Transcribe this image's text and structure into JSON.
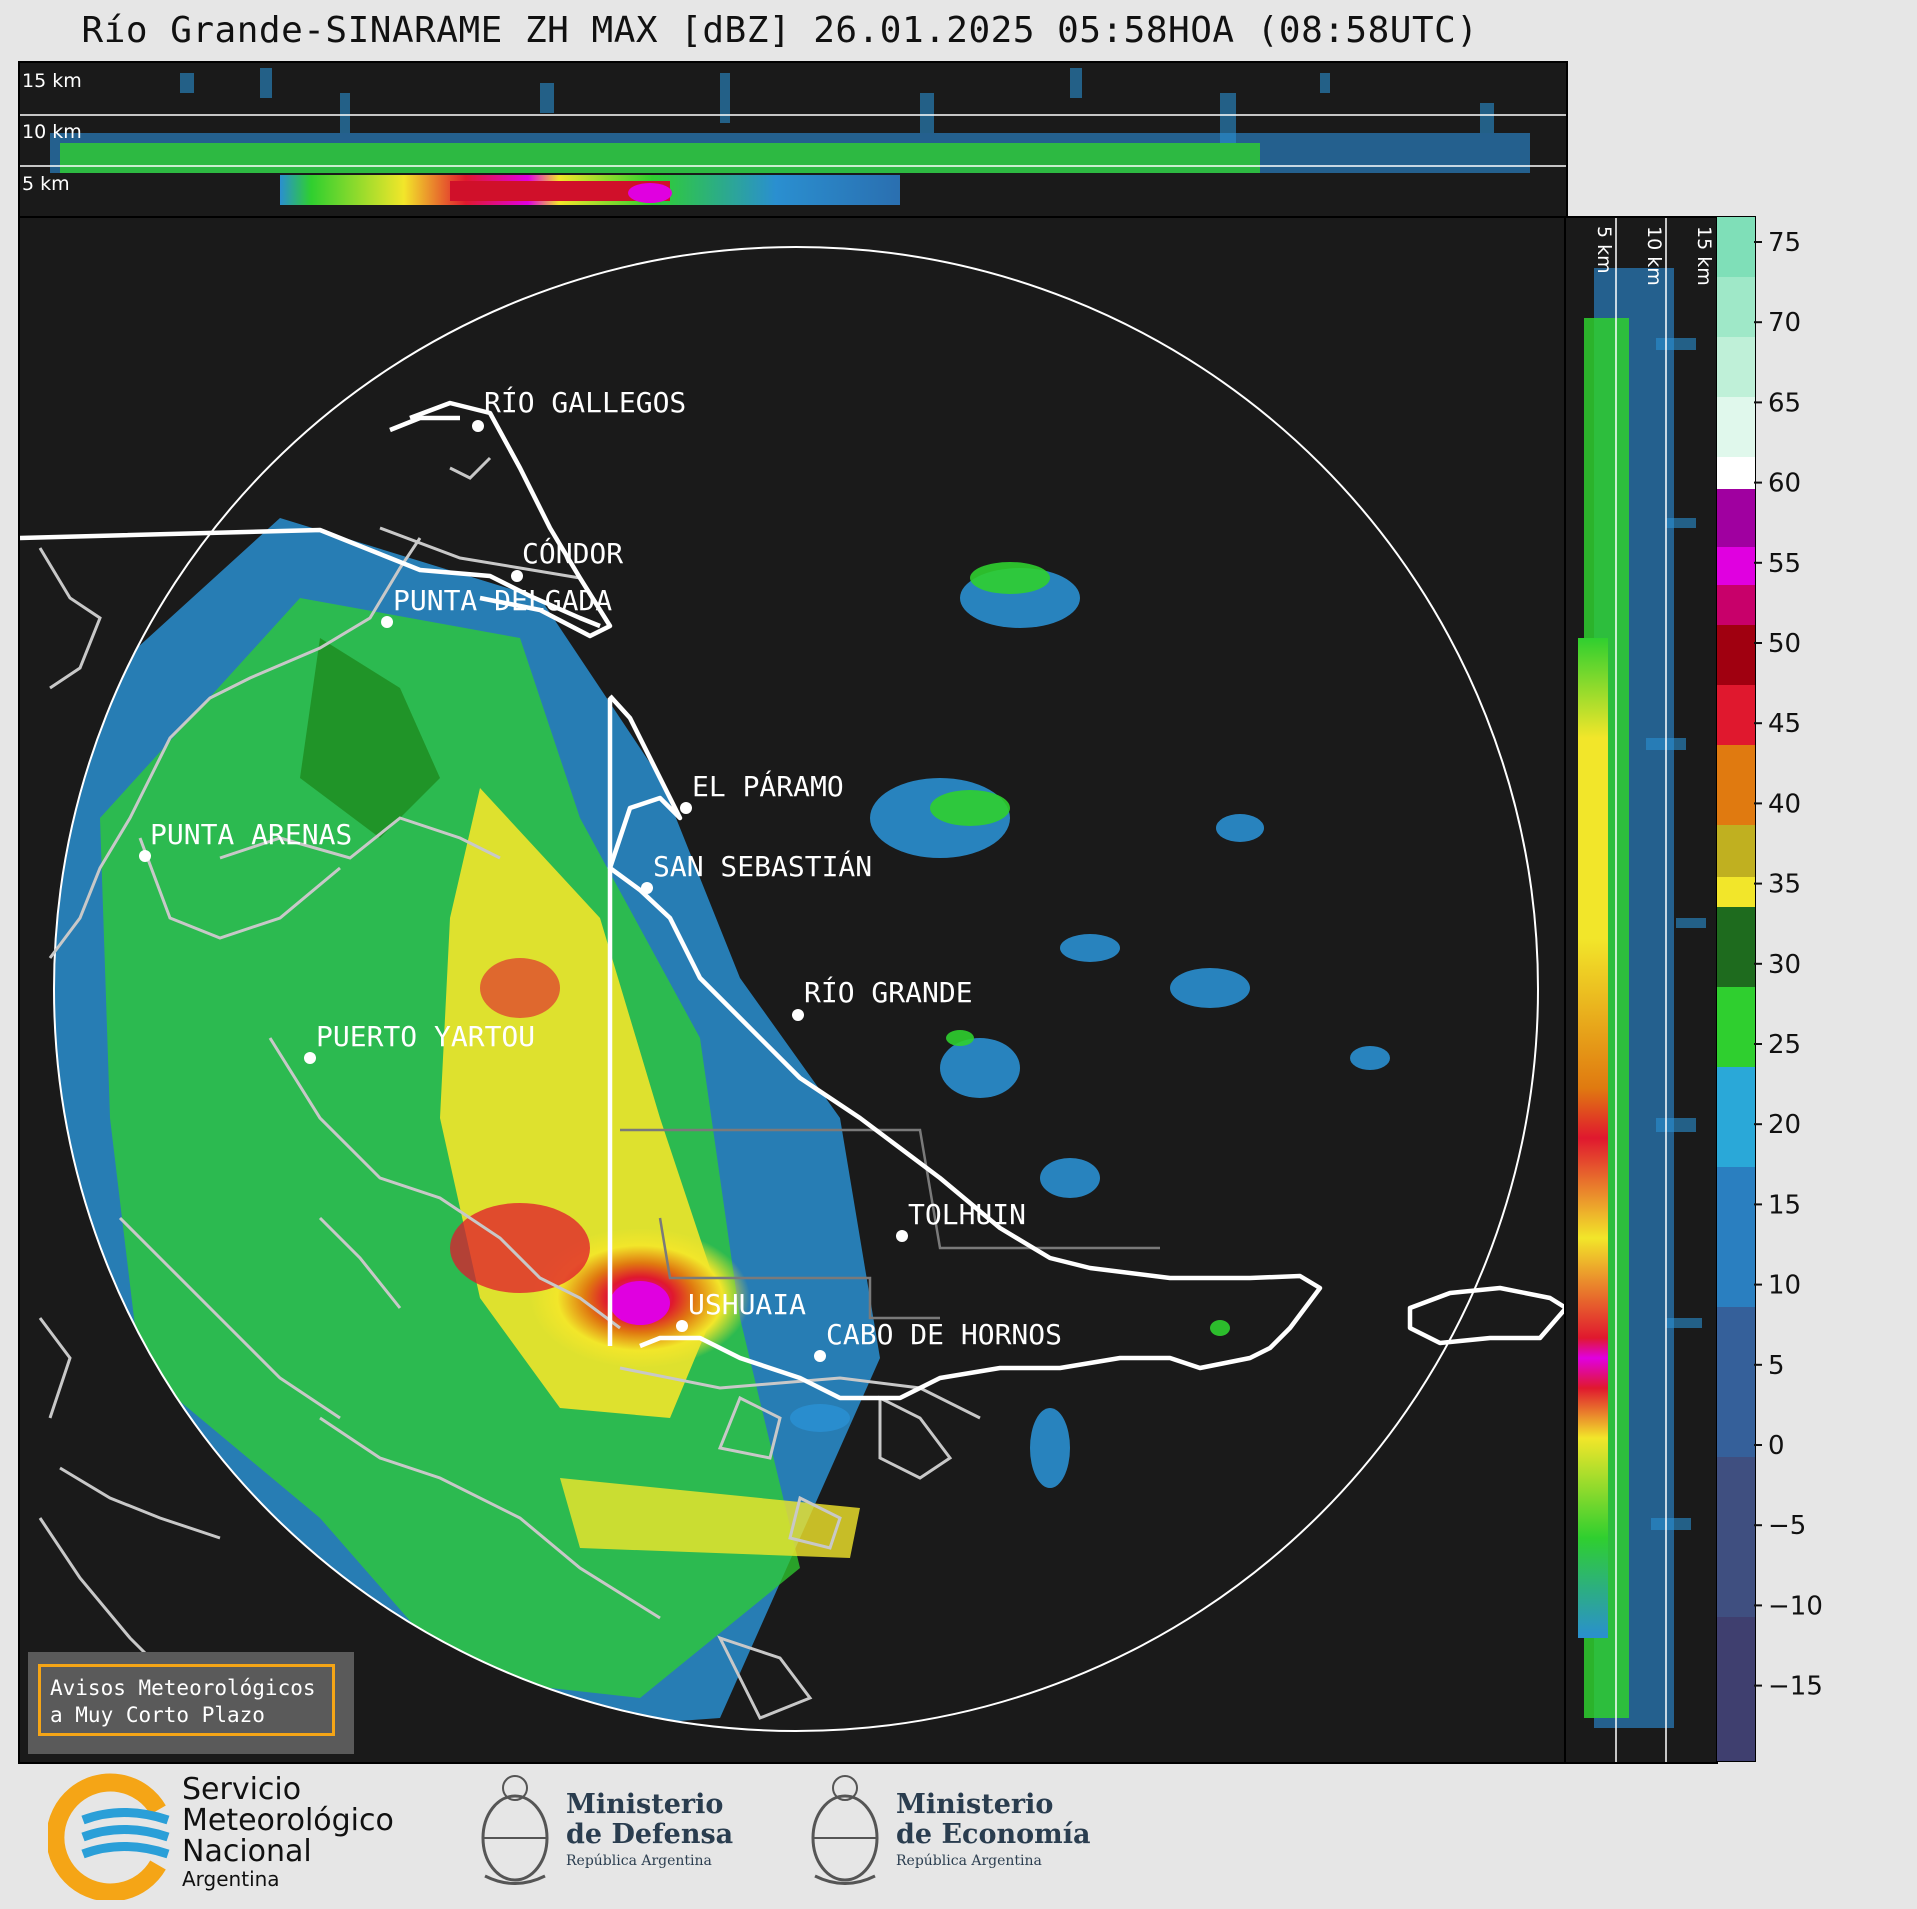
{
  "title": "Río Grande-SINARAME ZH MAX [dBZ] 26.01.2025 05:58HOA (08:58UTC)",
  "height_labels": {
    "top": [
      "15 km",
      "10 km",
      "5 km"
    ],
    "side": [
      "5 km",
      "10 km",
      "15 km"
    ]
  },
  "places": [
    {
      "name": "RÍO GALLEGOS"
    },
    {
      "name": "CÓNDOR"
    },
    {
      "name": "PUNTA DELGADA"
    },
    {
      "name": "PUNTA ARENAS"
    },
    {
      "name": "EL PÁRAMO"
    },
    {
      "name": "SAN SEBASTIÁN"
    },
    {
      "name": "RÍO GRANDE"
    },
    {
      "name": "PUERTO YARTOU"
    },
    {
      "name": "TOLHUIN"
    },
    {
      "name": "USHUAIA"
    },
    {
      "name": "CABO DE HORNOS"
    }
  ],
  "colorbar": {
    "ticks": [
      "75",
      "70",
      "65",
      "60",
      "55",
      "50",
      "45",
      "40",
      "35",
      "30",
      "25",
      "20",
      "15",
      "10",
      "5",
      "0",
      "−5",
      "−10",
      "−15"
    ],
    "colors": {
      "low": "#3f3f6f",
      "light_blue": "#2a8fd0",
      "green": "#2fcf2f",
      "dark_green": "#1e6b1e",
      "yellow": "#f2e62a",
      "orange": "#e07a10",
      "red": "#e0182e",
      "magenta": "#e000e0",
      "white": "#ffffff",
      "mint": "#7fdfb8"
    }
  },
  "avisos": {
    "line1": "Avisos Meteorológicos",
    "line2": "a Muy Corto Plazo"
  },
  "logos": {
    "smn": {
      "line1": "Servicio",
      "line2": "Meteorológico",
      "line3": "Nacional",
      "line4": "Argentina"
    },
    "defensa": {
      "line1": "Ministerio",
      "line2": "de Defensa",
      "line3": "República Argentina"
    },
    "economia": {
      "line1": "Ministerio",
      "line2": "de Economía",
      "line3": "República Argentina"
    }
  }
}
